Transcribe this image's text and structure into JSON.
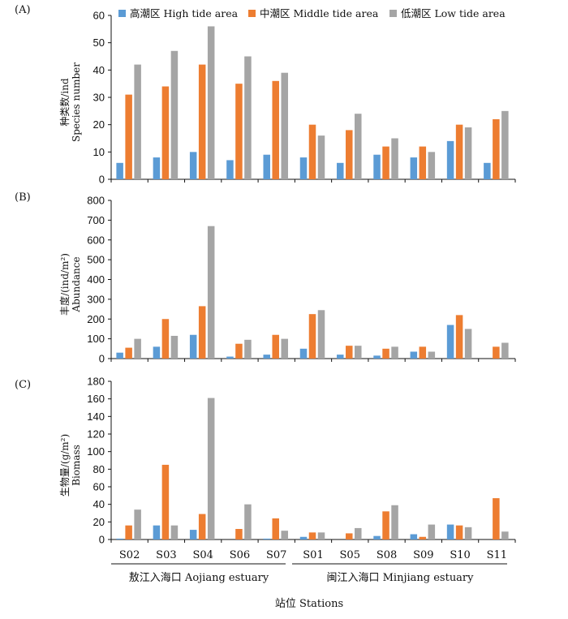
{
  "legend": [
    {
      "label": "高潮区 High tide area",
      "color": "#5b9bd5"
    },
    {
      "label": "中潮区 Middle tide area",
      "color": "#ed7d31"
    },
    {
      "label": "低潮区 Low tide area",
      "color": "#a5a5a5"
    }
  ],
  "stations": [
    "S02",
    "S03",
    "S04",
    "S06",
    "S07",
    "S01",
    "S05",
    "S08",
    "S09",
    "S10",
    "S11"
  ],
  "groups": [
    {
      "label": "敖江入海口 Aojiang estuary"
    },
    {
      "label": "闽江入海口 Minjiang estuary"
    }
  ],
  "xlabel": "站位 Stations",
  "chart_data": [
    {
      "type": "bar",
      "panel": "(A)",
      "ylabel_cn": "种类数/ind",
      "ylabel_en": "Species number",
      "ylim": [
        0,
        60
      ],
      "yticks": [
        0,
        10,
        20,
        30,
        40,
        50,
        60
      ],
      "categories": [
        "S02",
        "S03",
        "S04",
        "S06",
        "S07",
        "S01",
        "S05",
        "S08",
        "S09",
        "S10",
        "S11"
      ],
      "series": [
        {
          "name": "高潮区 High tide area",
          "values": [
            6,
            8,
            10,
            7,
            9,
            8,
            6,
            9,
            8,
            14,
            6
          ]
        },
        {
          "name": "中潮区 Middle tide area",
          "values": [
            31,
            34,
            42,
            35,
            36,
            20,
            18,
            12,
            12,
            20,
            22
          ]
        },
        {
          "name": "低潮区 Low tide area",
          "values": [
            42,
            47,
            56,
            45,
            39,
            16,
            24,
            15,
            10,
            19,
            25
          ]
        }
      ]
    },
    {
      "type": "bar",
      "panel": "(B)",
      "ylabel_cn": "丰度/(ind/m²)",
      "ylabel_en": "Abundance",
      "ylim": [
        0,
        800
      ],
      "yticks": [
        0,
        100,
        200,
        300,
        400,
        500,
        600,
        700,
        800
      ],
      "categories": [
        "S02",
        "S03",
        "S04",
        "S06",
        "S07",
        "S01",
        "S05",
        "S08",
        "S09",
        "S10",
        "S11"
      ],
      "series": [
        {
          "name": "高潮区 High tide area",
          "values": [
            30,
            60,
            120,
            10,
            20,
            50,
            20,
            15,
            35,
            170,
            0
          ]
        },
        {
          "name": "中潮区 Middle tide area",
          "values": [
            55,
            200,
            265,
            75,
            120,
            225,
            65,
            50,
            60,
            220,
            60
          ]
        },
        {
          "name": "低潮区 Low tide area",
          "values": [
            100,
            115,
            670,
            95,
            100,
            245,
            65,
            60,
            35,
            150,
            80
          ]
        }
      ]
    },
    {
      "type": "bar",
      "panel": "(C)",
      "ylabel_cn": "生物量/(g/m²)",
      "ylabel_en": "Biomass",
      "ylim": [
        0,
        180
      ],
      "yticks": [
        0,
        20,
        40,
        60,
        80,
        100,
        120,
        140,
        160,
        180
      ],
      "categories": [
        "S02",
        "S03",
        "S04",
        "S06",
        "S07",
        "S01",
        "S05",
        "S08",
        "S09",
        "S10",
        "S11"
      ],
      "series": [
        {
          "name": "高潮区 High tide area",
          "values": [
            1,
            16,
            11,
            0,
            1,
            3,
            0,
            4,
            6,
            17,
            0
          ]
        },
        {
          "name": "中潮区 Middle tide area",
          "values": [
            16,
            85,
            29,
            12,
            24,
            8,
            7,
            32,
            3,
            16,
            47
          ]
        },
        {
          "name": "低潮区 Low tide area",
          "values": [
            34,
            16,
            161,
            40,
            10,
            8,
            13,
            39,
            17,
            14,
            9
          ]
        }
      ]
    }
  ]
}
